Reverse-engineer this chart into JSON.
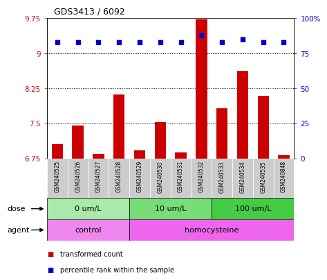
{
  "title": "GDS3413 / 6092",
  "samples": [
    "GSM240525",
    "GSM240526",
    "GSM240527",
    "GSM240528",
    "GSM240529",
    "GSM240530",
    "GSM240531",
    "GSM240532",
    "GSM240533",
    "GSM240534",
    "GSM240535",
    "GSM240848"
  ],
  "bar_values": [
    7.05,
    7.45,
    6.85,
    8.12,
    6.92,
    7.52,
    6.88,
    9.72,
    7.82,
    8.62,
    8.08,
    6.82
  ],
  "dot_values": [
    83,
    83,
    83,
    83,
    83,
    83,
    83,
    88,
    83,
    85,
    83,
    83
  ],
  "ylim_left": [
    6.75,
    9.75
  ],
  "ylim_right": [
    0,
    100
  ],
  "yticks_left": [
    6.75,
    7.5,
    8.25,
    9.0,
    9.75
  ],
  "yticks_right": [
    0,
    25,
    50,
    75,
    100
  ],
  "ytick_labels_left": [
    "6.75",
    "7.5",
    "8.25",
    "9",
    "9.75"
  ],
  "ytick_labels_right": [
    "0",
    "25",
    "50",
    "75",
    "100%"
  ],
  "hlines": [
    7.5,
    8.25,
    9.0
  ],
  "bar_color": "#cc0000",
  "dot_color": "#0000cc",
  "bar_bottom": 6.75,
  "dose_groups": [
    {
      "label": "0 um/L",
      "start": 0,
      "end": 4,
      "color": "#aaeaaa"
    },
    {
      "label": "10 um/L",
      "start": 4,
      "end": 8,
      "color": "#77dd77"
    },
    {
      "label": "100 um/L",
      "start": 8,
      "end": 12,
      "color": "#44cc44"
    }
  ],
  "agent_groups": [
    {
      "label": "control",
      "start": 0,
      "end": 4,
      "color": "#ee88ee"
    },
    {
      "label": "homocysteine",
      "start": 4,
      "end": 12,
      "color": "#ee66ee"
    }
  ],
  "dose_label": "dose",
  "agent_label": "agent",
  "legend_bar_label": "transformed count",
  "legend_dot_label": "percentile rank within the sample",
  "background_color": "#ffffff",
  "plot_bg_color": "#ffffff",
  "sample_bg_color": "#cccccc"
}
